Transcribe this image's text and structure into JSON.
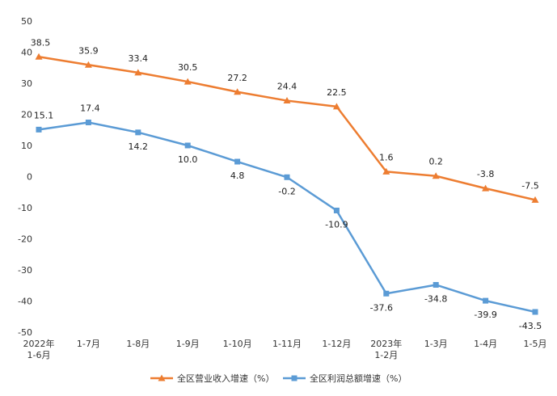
{
  "chart_data": {
    "type": "line",
    "title": "",
    "xlabel": "",
    "ylabel": "",
    "ylim": [
      -50,
      50
    ],
    "yticks": [
      50,
      40,
      30,
      20,
      10,
      0,
      -10,
      -20,
      -30,
      -40,
      -50
    ],
    "grid": false,
    "legend_position": "bottom",
    "categories": [
      [
        "2022年",
        "1-6月"
      ],
      [
        "1-7月"
      ],
      [
        "1-8月"
      ],
      [
        "1-9月"
      ],
      [
        "1-10月"
      ],
      [
        "1-11月"
      ],
      [
        "1-12月"
      ],
      [
        "2023年",
        "1-2月"
      ],
      [
        "1-3月"
      ],
      [
        "1-4月"
      ],
      [
        "1-5月"
      ]
    ],
    "series": [
      {
        "name": "全区营业收入增速（%）",
        "color": "#ED7D31",
        "marker": "triangle",
        "values": [
          38.5,
          35.9,
          33.4,
          30.5,
          27.2,
          24.4,
          22.5,
          1.6,
          0.2,
          -3.8,
          -7.5
        ],
        "labels": [
          "38.5",
          "35.9",
          "33.4",
          "30.5",
          "27.2",
          "24.4",
          "22.5",
          "1.6",
          "0.2",
          "-3.8",
          "-7.5"
        ]
      },
      {
        "name": "全区利润总额增速（%）",
        "color": "#5B9BD5",
        "marker": "square",
        "values": [
          15.1,
          17.4,
          14.2,
          10.0,
          4.8,
          -0.2,
          -10.9,
          -37.6,
          -34.8,
          -39.9,
          -43.5
        ],
        "labels": [
          "15.1",
          "17.4",
          "14.2",
          "10.0",
          "4.8",
          "-0.2",
          "-10.9",
          "-37.6",
          "-34.8",
          "-39.9",
          "-43.5"
        ]
      }
    ]
  }
}
